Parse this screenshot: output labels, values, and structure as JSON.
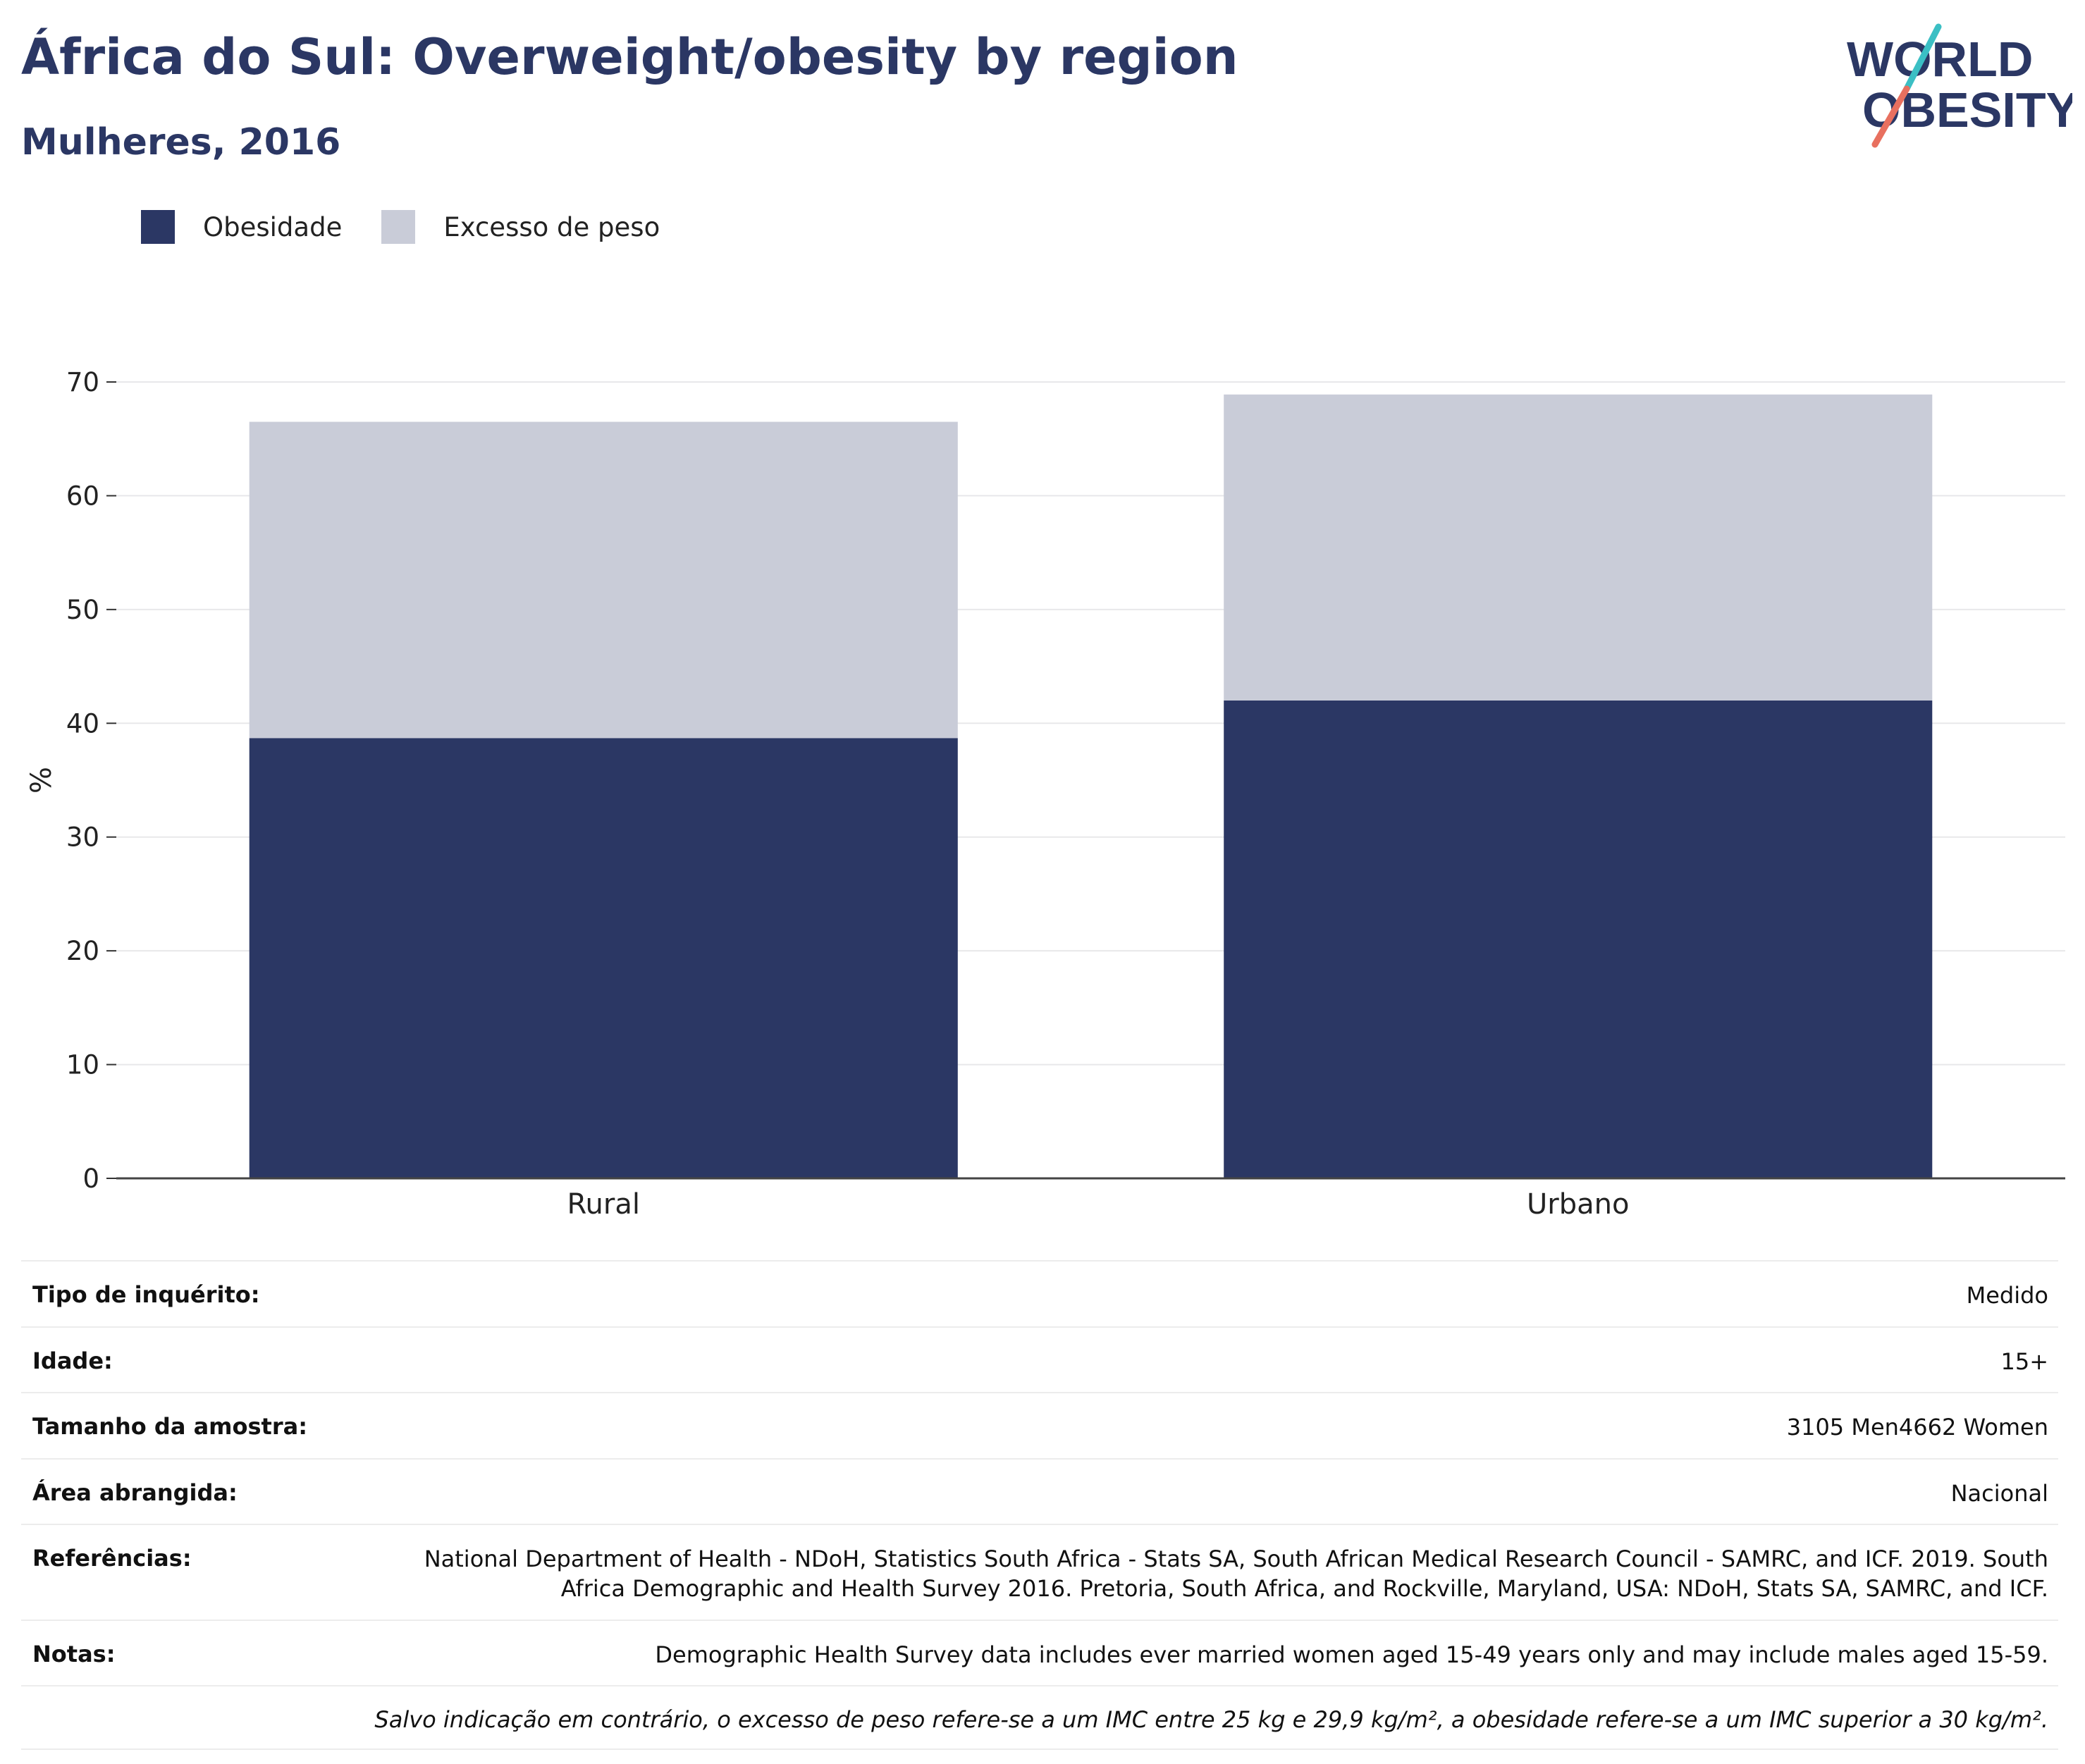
{
  "header": {
    "title": "África do Sul: Overweight/obesity by region",
    "subtitle": "Mulheres, 2016"
  },
  "logo": {
    "line1": "WORLD",
    "line2": "OBESITY"
  },
  "colors": {
    "obesity": "#2b3764",
    "overweight": "#c9ccd8",
    "title": "#2b3764",
    "logo_teal": "#3bbfc4",
    "logo_coral": "#e8705f"
  },
  "chart_data": {
    "type": "bar",
    "stacked": true,
    "categories": [
      "Rural",
      "Urbano"
    ],
    "series": [
      {
        "name": "Obesidade",
        "values": [
          38.7,
          42.0
        ]
      },
      {
        "name": "Excesso de peso",
        "values": [
          27.8,
          26.9
        ]
      }
    ],
    "ylabel": "%",
    "ylim": [
      0,
      70
    ],
    "yticks": [
      0,
      10,
      20,
      30,
      40,
      50,
      60,
      70
    ],
    "grid": true,
    "legend_position": "top-left"
  },
  "info_table": [
    {
      "label": "Tipo de inquérito:",
      "value": "Medido"
    },
    {
      "label": "Idade:",
      "value": "15+"
    },
    {
      "label": "Tamanho da amostra:",
      "value": "3105 Men4662 Women"
    },
    {
      "label": "Área abrangida:",
      "value": "Nacional"
    },
    {
      "label": "Referências:",
      "value": "National Department of Health - NDoH, Statistics South Africa - Stats SA, South African Medical Research Council - SAMRC, and ICF. 2019. South Africa Demographic and Health Survey 2016. Pretoria, South Africa, and Rockville, Maryland, USA: NDoH, Stats SA, SAMRC, and ICF."
    },
    {
      "label": "Notas:",
      "value": "Demographic Health Survey data includes ever married women aged 15-49 years only and may include males aged 15-59."
    }
  ],
  "footnote": "Salvo indicação em contrário, o excesso de peso refere-se a um IMC entre 25 kg e 29,9 kg/m², a obesidade refere-se a um IMC superior a 30 kg/m²."
}
